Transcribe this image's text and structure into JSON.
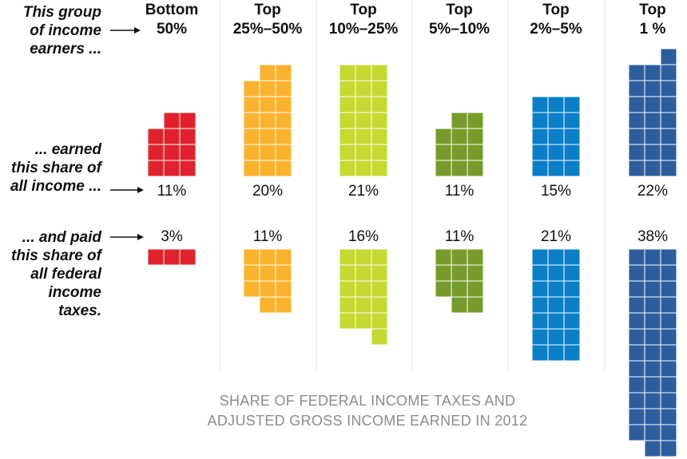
{
  "row_labels": {
    "group": [
      "This group",
      "of income",
      "earners ..."
    ],
    "income": [
      "... earned",
      "this share of",
      "all income ..."
    ],
    "taxes": [
      "... and paid",
      "this share of",
      "all federal",
      "income",
      "taxes."
    ]
  },
  "footer": [
    "SHARE OF FEDERAL INCOME TAXES AND",
    "ADJUSTED GROSS INCOME EARNED IN 2012"
  ],
  "chart_data": {
    "type": "unit-chart",
    "title": "",
    "unit": "1 square = 1%",
    "categories": [
      {
        "line1": "Bottom",
        "line2": "50%",
        "income_share": 11,
        "income_label": "11%",
        "tax_share": 3,
        "tax_label": "3%",
        "color": "#e1222c"
      },
      {
        "line1": "Top",
        "line2": "25%–50%",
        "income_share": 20,
        "income_label": "20%",
        "tax_share": 11,
        "tax_label": "11%",
        "color": "#fbb22e"
      },
      {
        "line1": "Top",
        "line2": "10%–25%",
        "income_share": 21,
        "income_label": "21%",
        "tax_share": 16,
        "tax_label": "16%",
        "color": "#c5d931"
      },
      {
        "line1": "Top",
        "line2": "5%–10%",
        "income_share": 11,
        "income_label": "11%",
        "tax_share": 11,
        "tax_label": "11%",
        "color": "#779b2a"
      },
      {
        "line1": "Top",
        "line2": "2%–5%",
        "income_share": 15,
        "income_label": "15%",
        "tax_share": 21,
        "tax_label": "21%",
        "color": "#0a7fc6"
      },
      {
        "line1": "Top",
        "line2": "1 %",
        "income_share": 22,
        "income_label": "22%",
        "tax_share": 38,
        "tax_label": "38%",
        "color": "#2c5e9e"
      }
    ]
  }
}
